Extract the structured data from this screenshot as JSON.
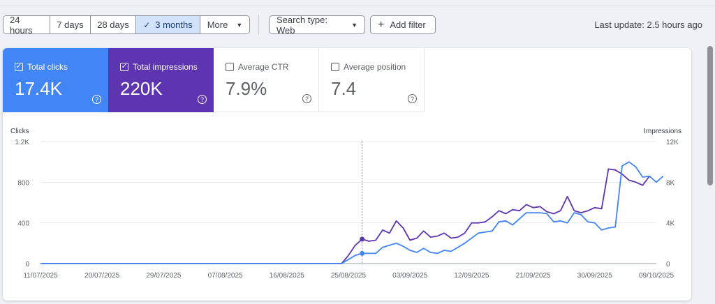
{
  "toolbar": {
    "range_buttons": [
      "24 hours",
      "7 days",
      "28 days",
      "3 months"
    ],
    "more_label": "More",
    "search_type_label": "Search type: Web",
    "add_filter_label": "Add filter",
    "last_update": "Last update: 2.5 hours ago"
  },
  "metrics": {
    "clicks": {
      "label": "Total clicks",
      "value": "17.4K",
      "checked": true
    },
    "impressions": {
      "label": "Total impressions",
      "value": "220K",
      "checked": true
    },
    "ctr": {
      "label": "Average CTR",
      "value": "7.9%",
      "checked": false
    },
    "position": {
      "label": "Average position",
      "value": "7.4",
      "checked": false
    }
  },
  "colors": {
    "clicks": "#4285f4",
    "impressions": "#5e35b1",
    "active_range": "#d2e3fc"
  },
  "chart_data": {
    "type": "line",
    "left_axis_label": "Clicks",
    "right_axis_label": "Impressions",
    "left_ticks": [
      "0",
      "400",
      "800",
      "1.2K"
    ],
    "right_ticks": [
      "0",
      "4K",
      "8K",
      "12K"
    ],
    "ylim_left": [
      0,
      1200
    ],
    "ylim_right": [
      0,
      12000
    ],
    "x_tick_labels": [
      "11/07/2025",
      "20/07/2025",
      "29/07/2025",
      "07/08/2025",
      "16/08/2025",
      "25/08/2025",
      "03/09/2025",
      "12/09/2025",
      "21/09/2025",
      "30/09/2025",
      "09/10/2025"
    ],
    "x_start": "2025-07-11",
    "x_end": "2025-10-09",
    "hover_date": "2025-08-27",
    "series": [
      {
        "name": "Total clicks",
        "axis": "left",
        "color": "#4285f4",
        "points": [
          [
            "2025-07-11",
            0
          ],
          [
            "2025-08-24",
            0
          ],
          [
            "2025-08-25",
            40
          ],
          [
            "2025-08-26",
            80
          ],
          [
            "2025-08-27",
            100
          ],
          [
            "2025-08-28",
            100
          ],
          [
            "2025-08-29",
            100
          ],
          [
            "2025-08-30",
            160
          ],
          [
            "2025-08-31",
            180
          ],
          [
            "2025-09-01",
            200
          ],
          [
            "2025-09-02",
            170
          ],
          [
            "2025-09-03",
            130
          ],
          [
            "2025-09-04",
            110
          ],
          [
            "2025-09-05",
            150
          ],
          [
            "2025-09-06",
            110
          ],
          [
            "2025-09-07",
            100
          ],
          [
            "2025-09-08",
            130
          ],
          [
            "2025-09-09",
            120
          ],
          [
            "2025-09-10",
            160
          ],
          [
            "2025-09-11",
            200
          ],
          [
            "2025-09-12",
            250
          ],
          [
            "2025-09-13",
            300
          ],
          [
            "2025-09-14",
            310
          ],
          [
            "2025-09-15",
            320
          ],
          [
            "2025-09-16",
            410
          ],
          [
            "2025-09-17",
            420
          ],
          [
            "2025-09-18",
            380
          ],
          [
            "2025-09-19",
            440
          ],
          [
            "2025-09-20",
            500
          ],
          [
            "2025-09-21",
            500
          ],
          [
            "2025-09-22",
            500
          ],
          [
            "2025-09-23",
            490
          ],
          [
            "2025-09-24",
            410
          ],
          [
            "2025-09-25",
            420
          ],
          [
            "2025-09-26",
            400
          ],
          [
            "2025-09-27",
            500
          ],
          [
            "2025-09-28",
            480
          ],
          [
            "2025-09-29",
            410
          ],
          [
            "2025-09-30",
            400
          ],
          [
            "2025-10-01",
            330
          ],
          [
            "2025-10-02",
            350
          ],
          [
            "2025-10-03",
            360
          ],
          [
            "2025-10-04",
            960
          ],
          [
            "2025-10-05",
            1000
          ],
          [
            "2025-10-06",
            950
          ],
          [
            "2025-10-07",
            850
          ],
          [
            "2025-10-08",
            860
          ],
          [
            "2025-10-09",
            800
          ],
          [
            "2025-10-10",
            860
          ]
        ]
      },
      {
        "name": "Total impressions",
        "axis": "right",
        "color": "#5e35b1",
        "points": [
          [
            "2025-07-11",
            0
          ],
          [
            "2025-08-24",
            0
          ],
          [
            "2025-08-25",
            800
          ],
          [
            "2025-08-26",
            1800
          ],
          [
            "2025-08-27",
            2400
          ],
          [
            "2025-08-28",
            2200
          ],
          [
            "2025-08-29",
            2300
          ],
          [
            "2025-08-30",
            3300
          ],
          [
            "2025-08-31",
            3000
          ],
          [
            "2025-09-01",
            4200
          ],
          [
            "2025-09-02",
            3500
          ],
          [
            "2025-09-03",
            2300
          ],
          [
            "2025-09-04",
            2500
          ],
          [
            "2025-09-05",
            3200
          ],
          [
            "2025-09-06",
            2600
          ],
          [
            "2025-09-07",
            2700
          ],
          [
            "2025-09-08",
            3000
          ],
          [
            "2025-09-09",
            2500
          ],
          [
            "2025-09-10",
            2600
          ],
          [
            "2025-09-11",
            3000
          ],
          [
            "2025-09-12",
            4000
          ],
          [
            "2025-09-13",
            4000
          ],
          [
            "2025-09-14",
            4100
          ],
          [
            "2025-09-15",
            4600
          ],
          [
            "2025-09-16",
            5200
          ],
          [
            "2025-09-17",
            4900
          ],
          [
            "2025-09-18",
            5300
          ],
          [
            "2025-09-19",
            5200
          ],
          [
            "2025-09-20",
            5800
          ],
          [
            "2025-09-21",
            5500
          ],
          [
            "2025-09-22",
            5600
          ],
          [
            "2025-09-23",
            5100
          ],
          [
            "2025-09-24",
            4900
          ],
          [
            "2025-09-25",
            5200
          ],
          [
            "2025-09-26",
            6600
          ],
          [
            "2025-09-27",
            5200
          ],
          [
            "2025-09-28",
            5000
          ],
          [
            "2025-09-29",
            5200
          ],
          [
            "2025-09-30",
            5500
          ],
          [
            "2025-10-01",
            5400
          ],
          [
            "2025-10-02",
            9300
          ],
          [
            "2025-10-03",
            9200
          ],
          [
            "2025-10-04",
            8800
          ],
          [
            "2025-10-05",
            8200
          ],
          [
            "2025-10-06",
            8000
          ],
          [
            "2025-10-07",
            7700
          ],
          [
            "2025-10-08",
            8600
          ]
        ]
      }
    ]
  }
}
